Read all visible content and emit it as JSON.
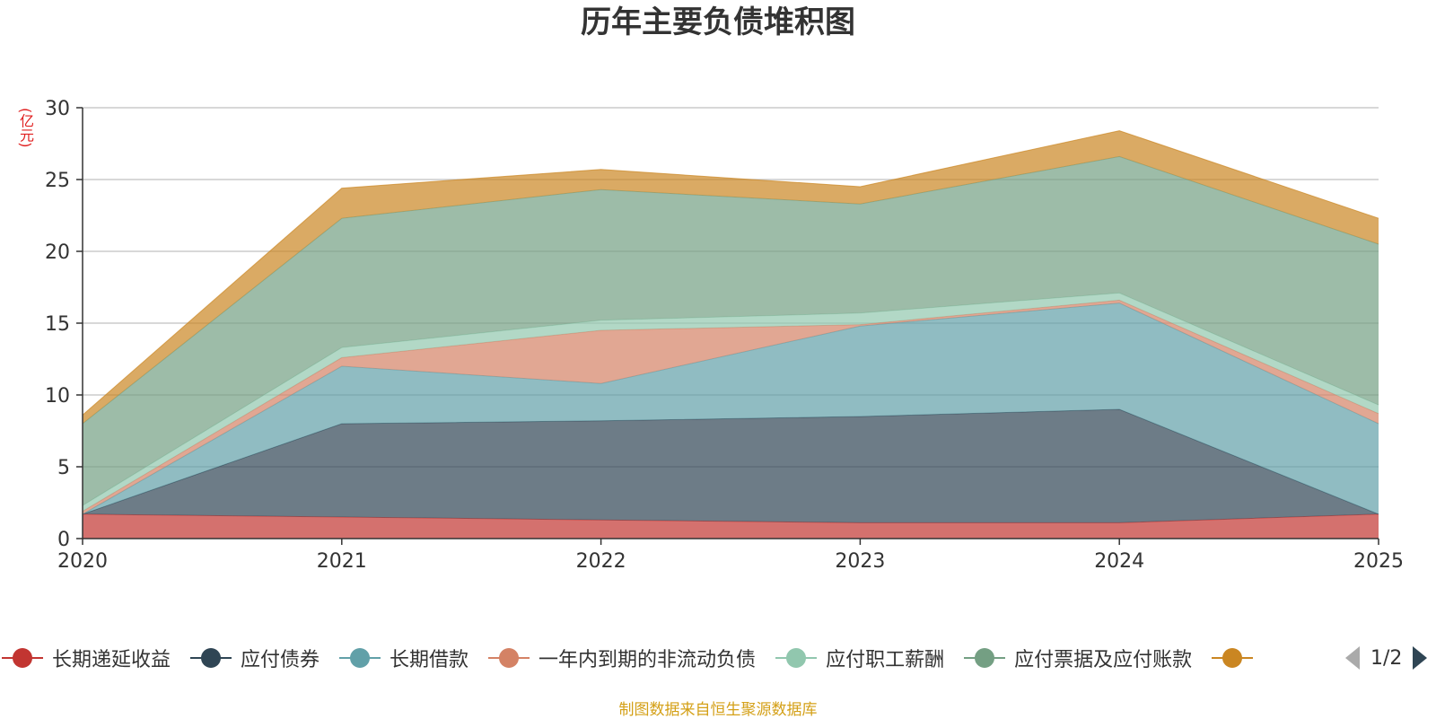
{
  "chart_data": {
    "type": "area",
    "stacked": true,
    "title": "历年主要负债堆积图",
    "ylabel": "(亿元)",
    "ylim": [
      0,
      30
    ],
    "yticks": [
      "0",
      "5",
      "10",
      "15",
      "20",
      "25",
      "30"
    ],
    "categories": [
      "2020",
      "2021",
      "2022",
      "2023",
      "2024",
      "2025"
    ],
    "grid": true,
    "legend_position": "bottom",
    "series": [
      {
        "name": "长期递延收益",
        "color": "#c23531",
        "values": [
          1.7,
          1.5,
          1.3,
          1.1,
          1.1,
          1.7
        ]
      },
      {
        "name": "应付债券",
        "color": "#2f4554",
        "values": [
          0.0,
          6.5,
          6.9,
          7.4,
          7.9,
          0.0
        ]
      },
      {
        "name": "长期借款",
        "color": "#61a0a8",
        "values": [
          0.0,
          4.0,
          2.6,
          6.3,
          7.4,
          6.3
        ]
      },
      {
        "name": "一年内到期的非流动负债",
        "color": "#d48265",
        "values": [
          0.2,
          0.6,
          3.7,
          0.1,
          0.2,
          0.7
        ]
      },
      {
        "name": "应付职工薪酬",
        "color": "#91c7ae",
        "values": [
          0.4,
          0.7,
          0.7,
          0.8,
          0.5,
          0.6
        ]
      },
      {
        "name": "应付票据及应付账款",
        "color": "#749f83",
        "values": [
          5.7,
          9.0,
          9.1,
          7.6,
          9.5,
          11.2
        ]
      },
      {
        "name": "",
        "color": "#ca8622",
        "values": [
          0.6,
          2.1,
          1.4,
          1.2,
          1.8,
          1.8
        ]
      }
    ]
  },
  "legend": {
    "pager_text": "1/2"
  },
  "source_note": "制图数据来自恒生聚源数据库"
}
